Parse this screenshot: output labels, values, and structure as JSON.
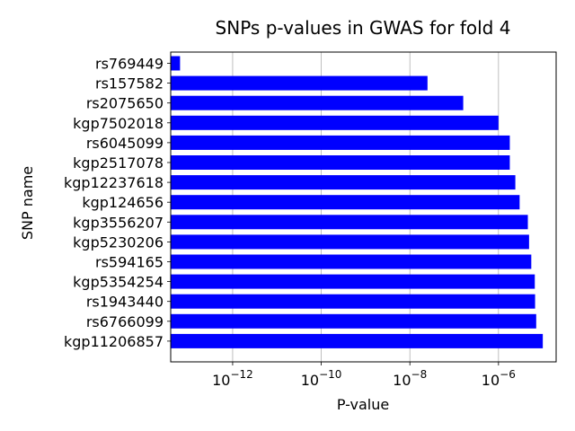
{
  "chart_data": {
    "type": "bar",
    "orientation": "horizontal",
    "title": "SNPs p-values in GWAS for fold 4",
    "xlabel": "P-value",
    "ylabel": "SNP name",
    "x_scale": "log",
    "xlim": [
      4e-14,
      2e-05
    ],
    "grid": "x-major",
    "bar_color": "#0000ff",
    "xticks": [
      {
        "value": 1e-12,
        "base": "10",
        "exp": "−12"
      },
      {
        "value": 1e-10,
        "base": "10",
        "exp": "−10"
      },
      {
        "value": 1e-08,
        "base": "10",
        "exp": "−8"
      },
      {
        "value": 1e-06,
        "base": "10",
        "exp": "−6"
      }
    ],
    "categories": [
      "rs769449",
      "rs157582",
      "rs2075650",
      "kgp7502018",
      "rs6045099",
      "kgp2517078",
      "kgp12237618",
      "kgp124656",
      "kgp3556207",
      "kgp5230206",
      "rs594165",
      "kgp5354254",
      "rs1943440",
      "rs6766099",
      "kgp11206857"
    ],
    "values": [
      6.5e-14,
      2.5e-08,
      1.6e-07,
      1e-06,
      1.8e-06,
      1.8e-06,
      2.4e-06,
      3e-06,
      4.6e-06,
      4.9e-06,
      5.5e-06,
      6.6e-06,
      6.7e-06,
      7.1e-06,
      1e-05
    ]
  }
}
